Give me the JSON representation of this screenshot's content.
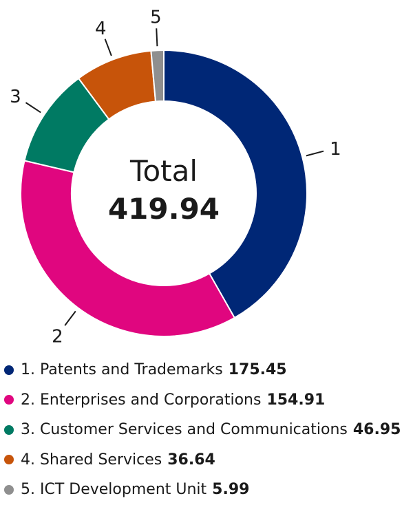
{
  "chart_data": {
    "type": "pie",
    "style": "donut",
    "center": {
      "label": "Total",
      "value": "419.94"
    },
    "slices": [
      {
        "index": "1",
        "label": "Patents and Trademarks",
        "value": 175.45,
        "value_text": "175.45",
        "color": "#002776"
      },
      {
        "index": "2",
        "label": "Enterprises and Corporations",
        "value": 154.91,
        "value_text": "154.91",
        "color": "#e0067f"
      },
      {
        "index": "3",
        "label": "Customer Services and Communications",
        "value": 46.95,
        "value_text": "46.95",
        "color": "#007a63"
      },
      {
        "index": "4",
        "label": "Shared Services",
        "value": 36.64,
        "value_text": "36.64",
        "color": "#c7540a"
      },
      {
        "index": "5",
        "label": "ICT Development Unit",
        "value": 5.99,
        "value_text": "5.99",
        "color": "#8f8f8f"
      }
    ],
    "legend_position": "bottom"
  }
}
